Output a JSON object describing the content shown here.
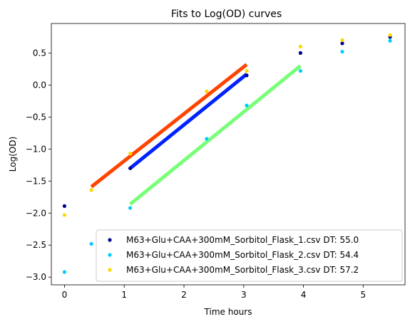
{
  "chart_data": {
    "type": "scatter",
    "title": "Fits to Log(OD) curves",
    "xlabel": "Time hours",
    "ylabel": "Log(OD)",
    "xlim": [
      -0.22,
      5.7
    ],
    "ylim": [
      -3.12,
      0.96
    ],
    "xticks": [
      0,
      1,
      2,
      3,
      4,
      5
    ],
    "yticks": [
      -3.0,
      -2.5,
      -2.0,
      -1.5,
      -1.0,
      -0.5,
      0.0,
      0.5
    ],
    "ytick_labels": [
      "−3.0",
      "−2.5",
      "−2.0",
      "−1.5",
      "−1.0",
      "−0.5",
      "0.0",
      "0.5"
    ],
    "grid": false,
    "legend_position": "lower-right",
    "series": [
      {
        "name": "M63+Glu+CAA+300mM_Sorbitol_Flask_1.csv DT: 55.0",
        "color": "#00008b",
        "x": [
          0.0,
          1.1,
          3.05,
          3.95,
          4.65,
          5.45
        ],
        "y": [
          -1.89,
          -1.3,
          0.15,
          0.5,
          0.65,
          0.75
        ]
      },
      {
        "name": "M63+Glu+CAA+300mM_Sorbitol_Flask_2.csv DT: 54.4",
        "color": "#00ccff",
        "x": [
          0.0,
          0.45,
          1.1,
          2.38,
          3.05,
          3.95,
          4.65,
          5.45
        ],
        "y": [
          -2.92,
          -2.48,
          -1.92,
          -0.84,
          -0.32,
          0.22,
          0.52,
          0.69
        ]
      },
      {
        "name": "M63+Glu+CAA+300mM_Sorbitol_Flask_3.csv DT: 57.2",
        "color": "#ffd700",
        "x": [
          0.0,
          0.45,
          1.1,
          2.38,
          3.05,
          3.95,
          4.65,
          5.45
        ],
        "y": [
          -2.03,
          -1.64,
          -1.07,
          -0.1,
          0.22,
          0.6,
          0.7,
          0.78
        ]
      }
    ],
    "fit_lines": [
      {
        "color": "#0022ff",
        "x": [
          1.1,
          3.05
        ],
        "y": [
          -1.3,
          0.17
        ]
      },
      {
        "color": "#77ff77",
        "x": [
          1.1,
          3.95
        ],
        "y": [
          -1.86,
          0.3
        ]
      },
      {
        "color": "#ff4400",
        "x": [
          0.45,
          3.05
        ],
        "y": [
          -1.59,
          0.32
        ]
      }
    ]
  }
}
